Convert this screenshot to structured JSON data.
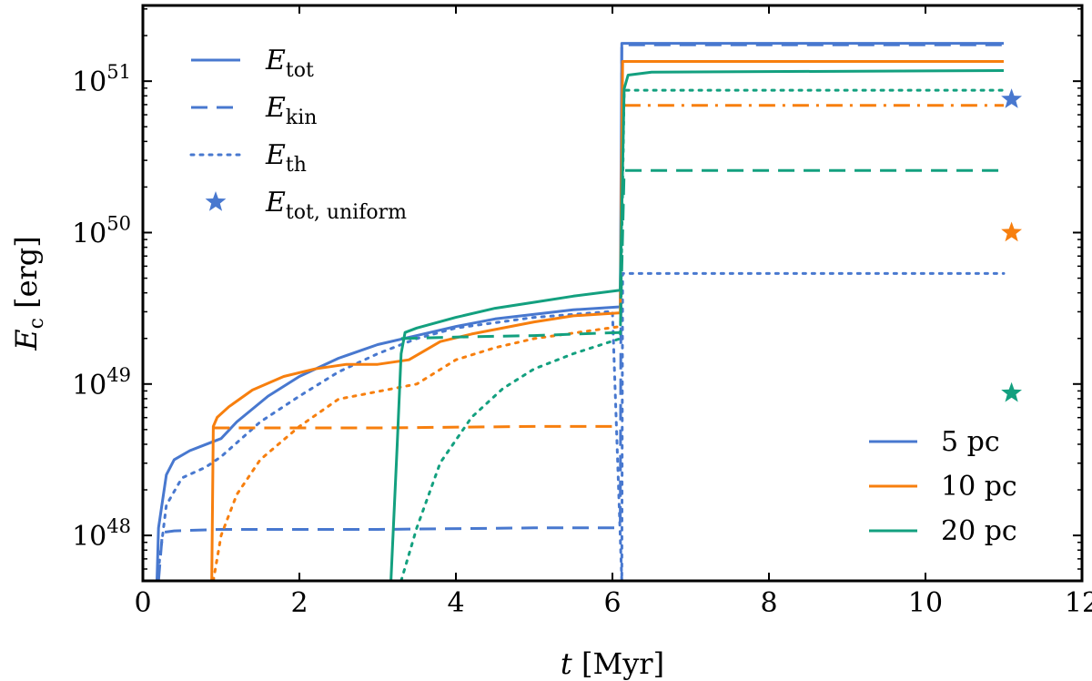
{
  "chart_data": {
    "type": "line",
    "title": "",
    "xlabel": {
      "var": "t",
      "unit": " [Myr]"
    },
    "ylabel": {
      "var": "E",
      "sub": "c",
      "unit": " [erg]"
    },
    "xlim": [
      0,
      12
    ],
    "ylim_log10": [
      47.7,
      51.5
    ],
    "yscale": "log",
    "x_ticks": [
      0,
      2,
      4,
      6,
      8,
      10,
      12
    ],
    "x_tick_labels": [
      "0",
      "2",
      "4",
      "6",
      "8",
      "10",
      "12"
    ],
    "y_tick_exponents": [
      48,
      49,
      50,
      51
    ],
    "y_tick_base": "10",
    "y_tick_exponent_labels": [
      "48",
      "49",
      "50",
      "51"
    ],
    "colors": {
      "r5": "#4878cf",
      "r10": "#f77f0e",
      "r20": "#13a07f"
    },
    "style_legend": [
      {
        "label": "E",
        "sub": "tot",
        "style": "solid",
        "kind": "line"
      },
      {
        "label": "E",
        "sub": "kin",
        "style": "dashed",
        "kind": "line"
      },
      {
        "label": "E",
        "sub": "th",
        "style": "dotted",
        "kind": "line"
      },
      {
        "label": "E",
        "sub": "tot, uniform",
        "style": "star",
        "kind": "marker"
      }
    ],
    "color_legend": [
      {
        "label": "5 pc",
        "color_key": "r5"
      },
      {
        "label": "10 pc",
        "color_key": "r10"
      },
      {
        "label": "20 pc",
        "color_key": "r20"
      }
    ],
    "series": [
      {
        "name": "E_tot 5 pc",
        "color_key": "r5",
        "style": "solid",
        "points": [
          [
            0.18,
            47.7
          ],
          [
            0.2,
            48.05
          ],
          [
            0.3,
            48.4
          ],
          [
            0.4,
            48.5
          ],
          [
            0.6,
            48.56
          ],
          [
            0.8,
            48.6
          ],
          [
            1.0,
            48.64
          ],
          [
            1.2,
            48.75
          ],
          [
            1.6,
            48.92
          ],
          [
            2.0,
            49.05
          ],
          [
            2.5,
            49.17
          ],
          [
            3.0,
            49.26
          ],
          [
            3.5,
            49.32
          ],
          [
            4.0,
            49.38
          ],
          [
            4.5,
            49.43
          ],
          [
            5.0,
            49.46
          ],
          [
            5.5,
            49.49
          ],
          [
            6.1,
            49.51
          ],
          [
            6.12,
            51.25
          ],
          [
            11.0,
            51.25
          ]
        ]
      },
      {
        "name": "E_kin 5 pc",
        "color_key": "r5",
        "style": "dashed",
        "points": [
          [
            0.2,
            47.7
          ],
          [
            0.25,
            48.02
          ],
          [
            0.4,
            48.03
          ],
          [
            1.0,
            48.04
          ],
          [
            3.0,
            48.04
          ],
          [
            5.0,
            48.05
          ],
          [
            6.05,
            48.05
          ],
          [
            6.1,
            48.08
          ],
          [
            6.12,
            51.24
          ],
          [
            11.0,
            51.24
          ]
        ]
      },
      {
        "name": "E_th 5 pc",
        "color_key": "r5",
        "style": "dotted",
        "points": [
          [
            0.18,
            47.7
          ],
          [
            0.3,
            48.2
          ],
          [
            0.5,
            48.38
          ],
          [
            0.8,
            48.45
          ],
          [
            1.0,
            48.52
          ],
          [
            1.5,
            48.75
          ],
          [
            2.0,
            48.92
          ],
          [
            2.5,
            49.08
          ],
          [
            3.0,
            49.2
          ],
          [
            3.5,
            49.3
          ],
          [
            4.0,
            49.37
          ],
          [
            5.0,
            49.44
          ],
          [
            6.0,
            49.48
          ],
          [
            6.12,
            47.7
          ],
          [
            6.13,
            49.73
          ],
          [
            11.0,
            49.73
          ]
        ]
      },
      {
        "name": "E_tot 10 pc",
        "color_key": "r10",
        "style": "solid",
        "points": [
          [
            0.88,
            47.7
          ],
          [
            0.9,
            48.72
          ],
          [
            0.95,
            48.78
          ],
          [
            1.1,
            48.85
          ],
          [
            1.4,
            48.96
          ],
          [
            1.8,
            49.05
          ],
          [
            2.2,
            49.1
          ],
          [
            2.6,
            49.13
          ],
          [
            3.0,
            49.13
          ],
          [
            3.4,
            49.16
          ],
          [
            3.8,
            49.28
          ],
          [
            4.2,
            49.33
          ],
          [
            5.0,
            49.41
          ],
          [
            5.5,
            49.45
          ],
          [
            6.1,
            49.47
          ],
          [
            6.13,
            51.13
          ],
          [
            11.0,
            51.13
          ]
        ]
      },
      {
        "name": "E_kin 10 pc",
        "color_key": "r10",
        "style": "dashed",
        "points": [
          [
            0.9,
            48.71
          ],
          [
            3.0,
            48.71
          ],
          [
            5.0,
            48.72
          ],
          [
            6.1,
            48.72
          ]
        ]
      },
      {
        "name": "E_th 10 pc",
        "color_key": "r10",
        "style": "dotted",
        "points": [
          [
            0.9,
            47.7
          ],
          [
            1.0,
            48.0
          ],
          [
            1.2,
            48.27
          ],
          [
            1.5,
            48.5
          ],
          [
            2.0,
            48.72
          ],
          [
            2.5,
            48.9
          ],
          [
            3.0,
            48.95
          ],
          [
            3.5,
            49.0
          ],
          [
            4.0,
            49.16
          ],
          [
            4.5,
            49.24
          ],
          [
            5.0,
            49.3
          ],
          [
            6.1,
            49.38
          ]
        ]
      },
      {
        "name": "E_mix 10 pc",
        "color_key": "r10",
        "style": "dashdot",
        "points": [
          [
            6.15,
            50.84
          ],
          [
            11.0,
            50.84
          ]
        ]
      },
      {
        "name": "E_tot 20 pc",
        "color_key": "r20",
        "style": "solid",
        "points": [
          [
            3.17,
            47.7
          ],
          [
            3.25,
            48.6
          ],
          [
            3.3,
            49.2
          ],
          [
            3.35,
            49.34
          ],
          [
            3.5,
            49.37
          ],
          [
            4.0,
            49.44
          ],
          [
            4.5,
            49.5
          ],
          [
            5.0,
            49.54
          ],
          [
            5.5,
            49.58
          ],
          [
            6.1,
            49.62
          ],
          [
            6.15,
            50.95
          ],
          [
            6.2,
            51.04
          ],
          [
            6.5,
            51.06
          ],
          [
            11.0,
            51.07
          ]
        ]
      },
      {
        "name": "E_kin 20 pc",
        "color_key": "r20",
        "style": "dashed",
        "points": [
          [
            3.3,
            49.3
          ],
          [
            4.0,
            49.31
          ],
          [
            5.0,
            49.32
          ],
          [
            6.1,
            49.34
          ],
          [
            6.15,
            50.41
          ],
          [
            11.0,
            50.41
          ]
        ]
      },
      {
        "name": "E_th 20 pc",
        "color_key": "r20",
        "style": "dotted",
        "points": [
          [
            3.3,
            47.7
          ],
          [
            3.5,
            48.05
          ],
          [
            3.8,
            48.48
          ],
          [
            4.2,
            48.78
          ],
          [
            4.6,
            48.97
          ],
          [
            5.0,
            49.1
          ],
          [
            5.5,
            49.2
          ],
          [
            6.1,
            49.3
          ],
          [
            6.15,
            50.94
          ],
          [
            11.0,
            50.94
          ]
        ]
      }
    ],
    "stars": [
      {
        "name": "E_tot,uniform 5 pc",
        "color_key": "r5",
        "x": 11.1,
        "y_log10": 50.88
      },
      {
        "name": "E_tot,uniform 10 pc",
        "color_key": "r10",
        "x": 11.1,
        "y_log10": 50.0
      },
      {
        "name": "E_tot,uniform 20 pc",
        "color_key": "r20",
        "x": 11.1,
        "y_log10": 48.94
      }
    ]
  }
}
